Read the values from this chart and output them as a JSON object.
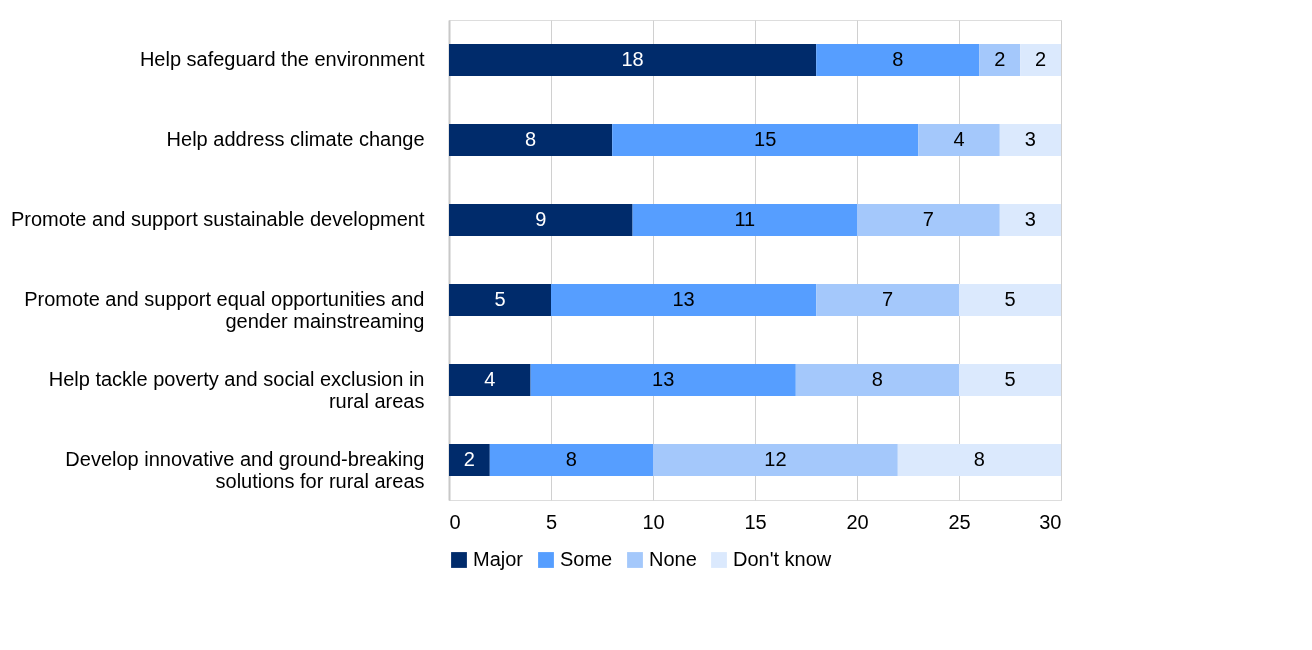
{
  "chart_data": {
    "type": "bar",
    "orientation": "horizontal",
    "stacked": true,
    "data_labels": true,
    "grid": "x",
    "legend": "bottom",
    "categories": [
      "Help safeguard the environment",
      "Help address climate change",
      "Promote and support sustainable development",
      "Promote and support equal opportunities and gender mainstreaming",
      "Help tackle poverty and social exclusion in rural areas",
      "Develop innovative and ground-breaking solutions for rural areas"
    ],
    "series": [
      {
        "name": "Major",
        "color": "#002b6b",
        "values": [
          18,
          8,
          9,
          5,
          4,
          2
        ]
      },
      {
        "name": "Some",
        "color": "#569eff",
        "values": [
          8,
          15,
          11,
          13,
          13,
          8
        ]
      },
      {
        "name": "None",
        "color": "#a4c8fb",
        "values": [
          2,
          4,
          7,
          7,
          8,
          12
        ]
      },
      {
        "name": "Don't know",
        "color": "#dbe9fd",
        "values": [
          2,
          3,
          3,
          5,
          5,
          8
        ]
      }
    ],
    "xlim": [
      0,
      30
    ],
    "xticks": [
      0,
      5,
      10,
      15,
      20,
      25,
      30
    ]
  }
}
